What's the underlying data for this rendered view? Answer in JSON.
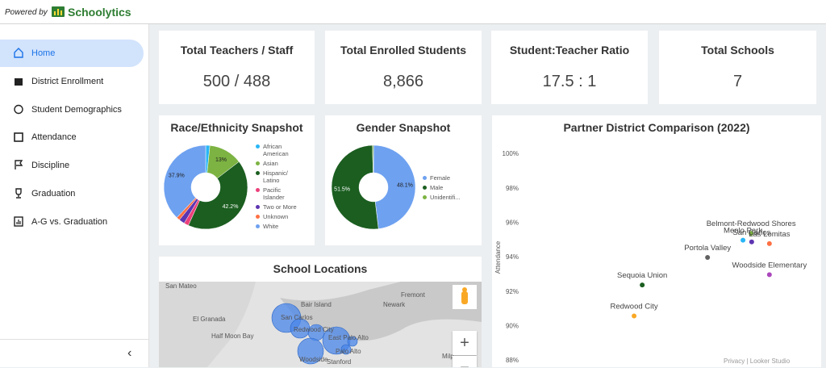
{
  "header": {
    "powered_by": "Powered by",
    "brand": "Schoolytics"
  },
  "nav": {
    "items": [
      "Home",
      "District Enrollment",
      "Student Demographics",
      "Attendance",
      "Discipline",
      "Graduation",
      "A-G vs. Graduation"
    ],
    "active": 0,
    "collapse": "‹"
  },
  "kpis": [
    {
      "title": "Total Teachers / Staff",
      "value": "500 / 488"
    },
    {
      "title": "Total Enrolled Students",
      "value": "8,866"
    },
    {
      "title": "Student:Teacher Ratio",
      "value": "17.5 : 1"
    },
    {
      "title": "Total Schools",
      "value": "7"
    }
  ],
  "chart_data": [
    {
      "type": "pie",
      "title": "Race/Ethnicity Snapshot",
      "categories": [
        "African American",
        "Asian",
        "Hispanic/ Latino",
        "Pacific Islander",
        "Two or More",
        "Unknown",
        "White"
      ],
      "values": [
        1.6,
        13,
        42.2,
        1.8,
        2.2,
        1.3,
        37.9
      ],
      "value_labels": [
        null,
        "13%",
        "42.2%",
        null,
        null,
        null,
        "37.9%"
      ],
      "colors": [
        "#29b6f6",
        "#7cb342",
        "#1b5e20",
        "#ec407a",
        "#5e35b1",
        "#ff7043",
        "#6ea1f0"
      ]
    },
    {
      "type": "pie",
      "title": "Gender Snapshot",
      "categories": [
        "Female",
        "Male",
        "Unidentifi..."
      ],
      "values": [
        48.1,
        51.5,
        0.4
      ],
      "value_labels": [
        "48.1%",
        "51.5%",
        null
      ],
      "colors": [
        "#6ea1f0",
        "#1b5e20",
        "#7cb342"
      ]
    },
    {
      "type": "scatter",
      "title": "Partner District Comparison (2022)",
      "y_label": "Attendance",
      "names": [
        "Redwood City",
        "Sequoia Union",
        "Portola Valley",
        "Belmont-Redwood Shores",
        "Menlo Park",
        "San Carlos",
        "Las Lomitas",
        "Woodside Elementary"
      ],
      "x": [
        37.8,
        40.6,
        63.1,
        78.1,
        75.3,
        78.3,
        84.4,
        84.4
      ],
      "values": [
        90.6,
        92.4,
        94.0,
        95.4,
        95.0,
        94.9,
        94.8,
        93.0
      ],
      "colors": [
        "#f9a825",
        "#1b5e20",
        "#616161",
        "#7cb342",
        "#29b6f6",
        "#5e35b1",
        "#ff7043",
        "#ab47bc"
      ],
      "xlim": [
        0,
        100
      ],
      "ylim": [
        88,
        100
      ],
      "yticks": [
        {
          "value": 88,
          "label": "88%"
        },
        {
          "value": 90,
          "label": "90%"
        },
        {
          "value": 92,
          "label": "92%"
        },
        {
          "value": 94,
          "label": "94%"
        },
        {
          "value": 96,
          "label": "96%"
        },
        {
          "value": 98,
          "label": "98%"
        },
        {
          "value": 100,
          "label": "100%"
        }
      ],
      "grid": false
    }
  ],
  "map": {
    "title": "School Locations",
    "labels": [
      "San Mateo",
      "Bair Island",
      "Newark",
      "Fremont",
      "El Granada",
      "Half Moon Bay",
      "San Carlos",
      "Redwood City",
      "East Palo Alto",
      "Palo Alto",
      "Woodside",
      "Stanford",
      "Milp"
    ],
    "zoom_in": "+",
    "zoom_out": "−"
  },
  "footer": {
    "privacy": "Privacy",
    "separator": "|",
    "brand": "Looker Studio"
  }
}
